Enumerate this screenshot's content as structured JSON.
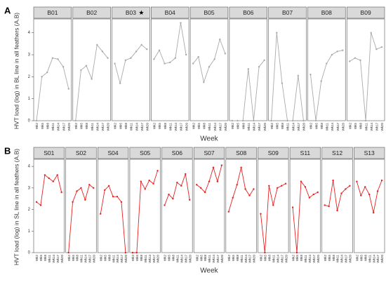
{
  "chart_data": [
    {
      "type": "line",
      "label": "A",
      "y_label": "HVT load (log) in BL line in all feathers (A.B)",
      "x_label": "Week",
      "categories": [
        "Wk2",
        "Wk5",
        "Wk8",
        "Wk11",
        "Wk14",
        "Wk17",
        "Wk20"
      ],
      "ylim": [
        0,
        4.5
      ],
      "yticks": [
        0,
        1,
        2,
        3,
        4
      ],
      "color": "#aaaaaa",
      "facets": [
        {
          "name": "B01",
          "values": [
            0,
            2.0,
            2.2,
            2.85,
            2.8,
            2.45,
            1.45
          ]
        },
        {
          "name": "B02",
          "values": [
            0,
            2.3,
            2.5,
            1.9,
            3.45,
            3.15,
            2.85
          ]
        },
        {
          "name": "B03",
          "annotation": "★",
          "values": [
            2.6,
            1.7,
            2.75,
            2.85,
            3.15,
            3.45,
            3.25
          ]
        },
        {
          "name": "B04",
          "values": [
            2.8,
            3.2,
            2.6,
            2.65,
            2.85,
            4.45,
            3.0
          ]
        },
        {
          "name": "B05",
          "values": [
            2.6,
            2.9,
            1.75,
            2.45,
            2.8,
            3.7,
            3.05
          ]
        },
        {
          "name": "B06",
          "values": [
            0,
            0,
            0,
            2.35,
            0,
            2.45,
            2.75
          ]
        },
        {
          "name": "B07",
          "values": [
            0,
            4.0,
            1.7,
            0,
            0,
            2.05,
            0
          ]
        },
        {
          "name": "B08",
          "values": [
            2.1,
            0,
            1.8,
            2.6,
            3.0,
            3.15,
            3.2
          ]
        },
        {
          "name": "B09",
          "values": [
            2.7,
            2.85,
            2.75,
            0,
            4.0,
            3.25,
            3.35
          ]
        }
      ]
    },
    {
      "type": "line",
      "label": "B",
      "y_label": "HVT load (log) in SL line in all feathers (A.B)",
      "x_label": "Week",
      "categories": [
        "Wk2",
        "Wk5",
        "Wk8",
        "Wk11",
        "Wk14",
        "Wk17",
        "Wk20"
      ],
      "ylim": [
        0,
        4.2
      ],
      "yticks": [
        0,
        1,
        2,
        3,
        4
      ],
      "color": "#e8201f",
      "facets": [
        {
          "name": "S01",
          "values": [
            2.35,
            2.2,
            3.6,
            3.45,
            3.3,
            3.6,
            2.8
          ]
        },
        {
          "name": "S02",
          "values": [
            0,
            2.35,
            2.85,
            3.0,
            2.45,
            3.15,
            3.0
          ]
        },
        {
          "name": "S04",
          "values": [
            1.8,
            2.9,
            3.1,
            2.6,
            2.6,
            2.35,
            0
          ]
        },
        {
          "name": "S05",
          "values": [
            0,
            0,
            3.3,
            2.95,
            3.35,
            3.2,
            3.8
          ]
        },
        {
          "name": "S06",
          "values": [
            2.2,
            2.7,
            2.5,
            3.25,
            3.1,
            3.65,
            2.45
          ]
        },
        {
          "name": "S07",
          "values": [
            3.15,
            3.0,
            2.8,
            3.3,
            3.95,
            3.3,
            4.05
          ]
        },
        {
          "name": "S08",
          "values": [
            1.9,
            2.55,
            3.15,
            3.95,
            2.95,
            2.65,
            2.95
          ]
        },
        {
          "name": "S09",
          "values": [
            1.8,
            0,
            3.1,
            2.2,
            3.0,
            3.1,
            3.2
          ]
        },
        {
          "name": "S11",
          "values": [
            2.1,
            0,
            3.3,
            3.05,
            2.55,
            2.7,
            2.8
          ]
        },
        {
          "name": "S12",
          "values": [
            2.2,
            2.15,
            3.35,
            1.95,
            2.75,
            2.95,
            3.1
          ]
        },
        {
          "name": "S13",
          "values": [
            3.3,
            2.65,
            3.05,
            2.7,
            1.85,
            2.85,
            3.35
          ]
        }
      ]
    }
  ]
}
